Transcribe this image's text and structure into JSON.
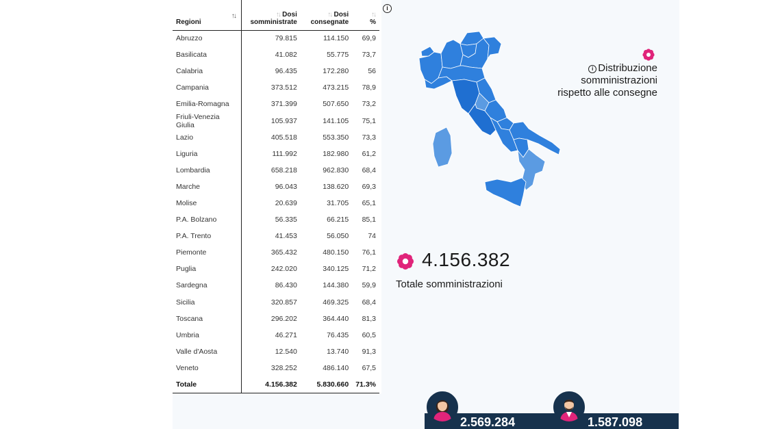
{
  "table": {
    "headers": {
      "region": "Regioni",
      "administered_line1": "Dosi",
      "administered_line2": "somministrate",
      "delivered_line1": "Dosi",
      "delivered_line2": "consegnate",
      "percent": "%"
    },
    "rows": [
      {
        "region": "Abruzzo",
        "administered": "79.815",
        "delivered": "114.150",
        "percent": "69,9"
      },
      {
        "region": "Basilicata",
        "administered": "41.082",
        "delivered": "55.775",
        "percent": "73,7"
      },
      {
        "region": "Calabria",
        "administered": "96.435",
        "delivered": "172.280",
        "percent": "56"
      },
      {
        "region": "Campania",
        "administered": "373.512",
        "delivered": "473.215",
        "percent": "78,9"
      },
      {
        "region": "Emilia-Romagna",
        "administered": "371.399",
        "delivered": "507.650",
        "percent": "73,2"
      },
      {
        "region": "Friuli-Venezia Giulia",
        "administered": "105.937",
        "delivered": "141.105",
        "percent": "75,1"
      },
      {
        "region": "Lazio",
        "administered": "405.518",
        "delivered": "553.350",
        "percent": "73,3"
      },
      {
        "region": "Liguria",
        "administered": "111.992",
        "delivered": "182.980",
        "percent": "61,2"
      },
      {
        "region": "Lombardia",
        "administered": "658.218",
        "delivered": "962.830",
        "percent": "68,4"
      },
      {
        "region": "Marche",
        "administered": "96.043",
        "delivered": "138.620",
        "percent": "69,3"
      },
      {
        "region": "Molise",
        "administered": "20.639",
        "delivered": "31.705",
        "percent": "65,1"
      },
      {
        "region": "P.A. Bolzano",
        "administered": "56.335",
        "delivered": "66.215",
        "percent": "85,1"
      },
      {
        "region": "P.A. Trento",
        "administered": "41.453",
        "delivered": "56.050",
        "percent": "74"
      },
      {
        "region": "Piemonte",
        "administered": "365.432",
        "delivered": "480.150",
        "percent": "76,1"
      },
      {
        "region": "Puglia",
        "administered": "242.020",
        "delivered": "340.125",
        "percent": "71,2"
      },
      {
        "region": "Sardegna",
        "administered": "86.430",
        "delivered": "144.380",
        "percent": "59,9"
      },
      {
        "region": "Sicilia",
        "administered": "320.857",
        "delivered": "469.325",
        "percent": "68,4"
      },
      {
        "region": "Toscana",
        "administered": "296.202",
        "delivered": "364.440",
        "percent": "81,3"
      },
      {
        "region": "Umbria",
        "administered": "46.271",
        "delivered": "76.435",
        "percent": "60,5"
      },
      {
        "region": "Valle d'Aosta",
        "administered": "12.540",
        "delivered": "13.740",
        "percent": "91,3"
      },
      {
        "region": "Veneto",
        "administered": "328.252",
        "delivered": "486.140",
        "percent": "67,5"
      }
    ],
    "total": {
      "region": "Totale",
      "administered": "4.156.382",
      "delivered": "5.830.660",
      "percent": "71.3%"
    }
  },
  "map_legend": {
    "line1": "Distribuzione somministrazioni",
    "line2": "rispetto alle consegne"
  },
  "summary": {
    "total_value": "4.156.382",
    "total_label": "Totale somministrazioni"
  },
  "gender": {
    "female_count": "2.569.284",
    "male_count": "1.587.098"
  },
  "colors": {
    "map_dark": "#1f6fd1",
    "map_mid": "#2f80dd",
    "map_light": "#5b9be2",
    "flower": "#e0247a",
    "bar": "#17324d"
  },
  "icons": [
    "info-icon",
    "sort-icon",
    "flower-icon",
    "female-avatar-icon",
    "male-avatar-icon"
  ]
}
